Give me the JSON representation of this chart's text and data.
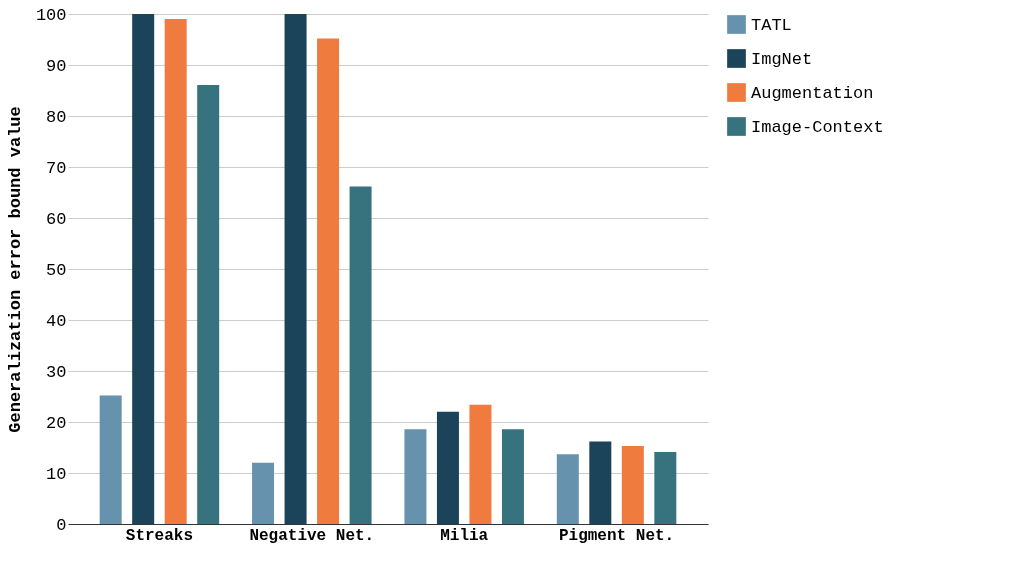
{
  "chart_data": {
    "type": "bar",
    "ylabel": "Generalization error bound value",
    "categories": [
      "Streaks",
      "Negative Net.",
      "Milia",
      "Pigment Net."
    ],
    "series": [
      {
        "name": "TATL",
        "color": "#6792ad",
        "values": [
          25.2,
          12.0,
          18.6,
          13.7
        ]
      },
      {
        "name": "ImgNet",
        "color": "#1b435a",
        "values": [
          100,
          100,
          22.0,
          16.2
        ]
      },
      {
        "name": "Augmentation",
        "color": "#f07b3f",
        "values": [
          99.0,
          95.2,
          23.4,
          15.3
        ]
      },
      {
        "name": "Image-Context",
        "color": "#37737f",
        "values": [
          86.1,
          66.2,
          18.6,
          14.1
        ]
      }
    ],
    "ylim": [
      0,
      100
    ],
    "yticks": [
      0,
      10,
      20,
      30,
      40,
      50,
      60,
      70,
      80,
      90,
      100
    ],
    "grid": "y",
    "legend": "top right"
  }
}
